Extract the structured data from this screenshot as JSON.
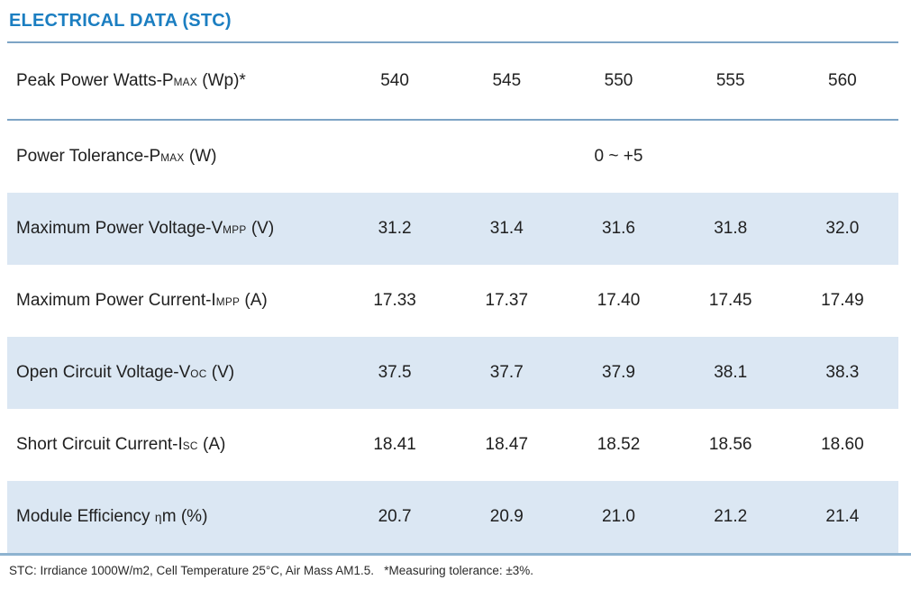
{
  "title": "ELECTRICAL DATA (STC)",
  "footnote": "STC: Irrdiance 1000W/m2, Cell Temperature 25°C, Air Mass AM1.5.   *Measuring tolerance: ±3%.",
  "colors": {
    "title_blue": "#1b7ec1",
    "rule_blue": "#7da4c5",
    "row_shade": "#dbe7f3",
    "text": "#202020"
  },
  "table": {
    "rows": [
      {
        "label": "Peak Power Watts-P",
        "sub": "MAX",
        "suffix": " (Wp)*",
        "values": [
          "540",
          "545",
          "550",
          "555",
          "560"
        ]
      },
      {
        "label": "Power Tolerance-P",
        "sub": "MAX",
        "suffix": " (W)",
        "span_value": "0 ~ +5"
      },
      {
        "label": "Maximum Power Voltage-V",
        "sub": "MPP",
        "suffix": " (V)",
        "values": [
          "31.2",
          "31.4",
          "31.6",
          "31.8",
          "32.0"
        ]
      },
      {
        "label": "Maximum Power Current-I",
        "sub": "MPP",
        "suffix": " (A)",
        "values": [
          "17.33",
          "17.37",
          "17.40",
          "17.45",
          "17.49"
        ]
      },
      {
        "label": "Open Circuit Voltage-V",
        "sub": "OC",
        "suffix": " (V)",
        "values": [
          "37.5",
          "37.7",
          "37.9",
          "38.1",
          "38.3"
        ]
      },
      {
        "label": "Short Circuit Current-I",
        "sub": "SC",
        "suffix": " (A)",
        "values": [
          "18.41",
          "18.47",
          "18.52",
          "18.56",
          "18.60"
        ]
      },
      {
        "label": "Module Efficiency ",
        "sub": "η",
        "suffix": "m (%)",
        "values": [
          "20.7",
          "20.9",
          "21.0",
          "21.2",
          "21.4"
        ]
      }
    ]
  }
}
